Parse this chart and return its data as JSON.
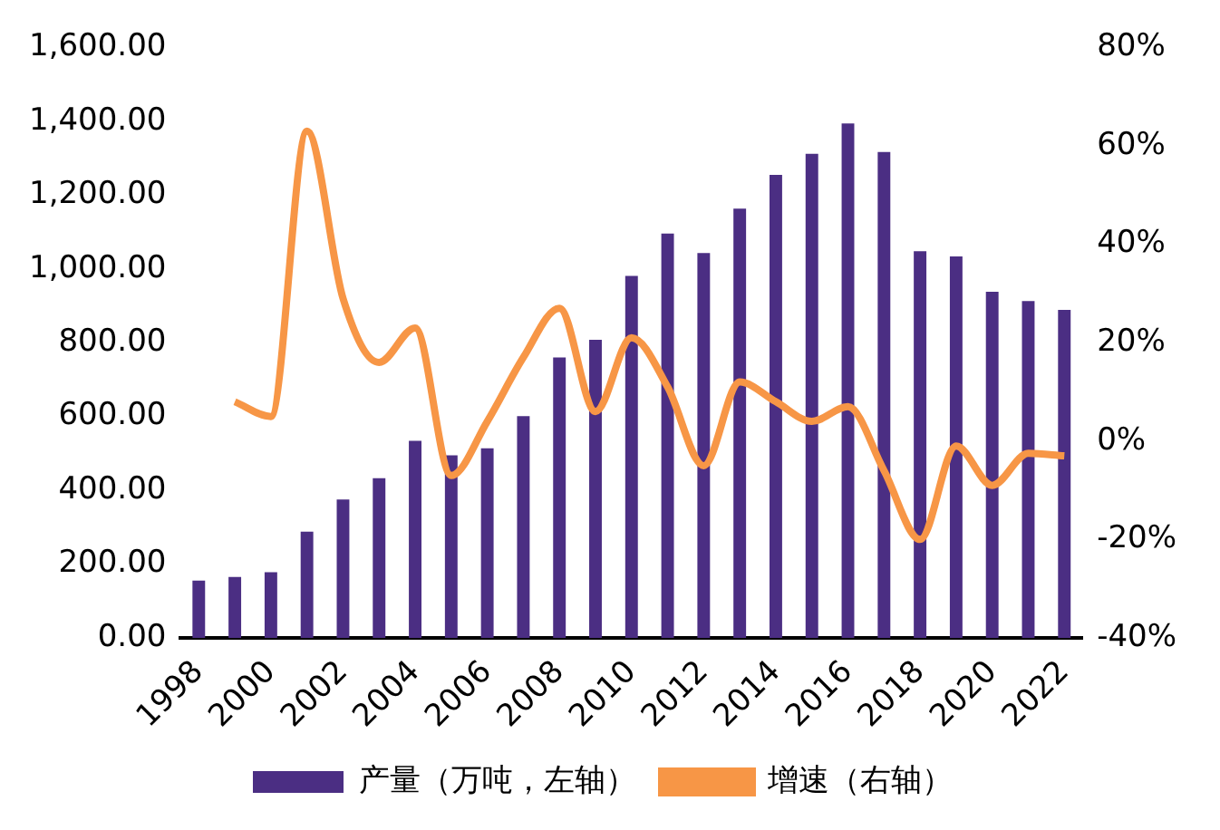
{
  "chart_data": {
    "type": "bar",
    "categories": [
      "1998",
      null,
      "2000",
      null,
      "2002",
      null,
      "2004",
      null,
      "2006",
      null,
      "2008",
      null,
      "2010",
      null,
      "2012",
      null,
      "2014",
      null,
      "2016",
      null,
      "2018",
      null,
      "2020",
      null,
      "2022"
    ],
    "series": [
      {
        "name": "产量（万吨，左轴）",
        "color": "#4b2e83",
        "values": [
          155,
          165,
          178,
          288,
          375,
          433,
          534,
          495,
          514,
          601,
          760,
          808,
          981,
          1096,
          1043,
          1163,
          1255,
          1312,
          1394,
          1317,
          1048,
          1034,
          938,
          913,
          889
        ]
      },
      {
        "name": "增速（右轴）",
        "type": "line",
        "axis": "y2",
        "color": "#f79646",
        "values": [
          null,
          8,
          5,
          63,
          29,
          16,
          23,
          -7,
          4,
          17,
          27,
          6,
          21,
          11,
          -5,
          12,
          8,
          4,
          7,
          -6,
          -20,
          -1,
          -9,
          -2.5,
          -3
        ]
      }
    ],
    "ylim": [
      0,
      1600
    ],
    "yticks": [
      {
        "value": 0,
        "label": "0.00"
      },
      {
        "value": 200,
        "label": "200.00"
      },
      {
        "value": 400,
        "label": "400.00"
      },
      {
        "value": 600,
        "label": "600.00"
      },
      {
        "value": 800,
        "label": "800.00"
      },
      {
        "value": 1000,
        "label": "1,000.00"
      },
      {
        "value": 1200,
        "label": "1,200.00"
      },
      {
        "value": 1400,
        "label": "1,400.00"
      },
      {
        "value": 1600,
        "label": "1,600.00"
      }
    ],
    "y2lim": [
      -40,
      80
    ],
    "y2ticks": [
      {
        "value": -40,
        "label": "-40%"
      },
      {
        "value": -20,
        "label": "-20%"
      },
      {
        "value": 0,
        "label": "0%"
      },
      {
        "value": 20,
        "label": "20%"
      },
      {
        "value": 40,
        "label": "40%"
      },
      {
        "value": 60,
        "label": "60%"
      },
      {
        "value": 80,
        "label": "80%"
      }
    ],
    "grid": false,
    "legend": "bottom",
    "marker": "none"
  }
}
